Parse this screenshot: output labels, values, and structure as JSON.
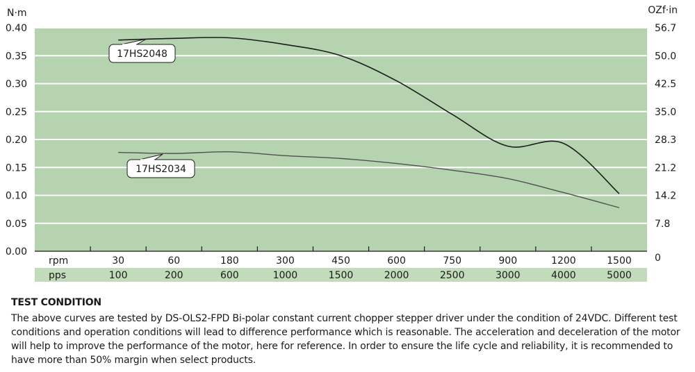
{
  "chart_data": {
    "type": "line",
    "ylabel_left": "N·m",
    "ylabel_right": "OZf·in",
    "ylim": [
      0,
      0.4
    ],
    "yticks_left": [
      "0.00",
      "0.05",
      "0.10",
      "0.15",
      "0.20",
      "0.25",
      "0.30",
      "0.35",
      "0.40"
    ],
    "yticks_right": [
      "0",
      "7.8",
      "14.2",
      "21.2",
      "28.3",
      "35.0",
      "42.5",
      "50.0",
      "56.7"
    ],
    "row_labels": {
      "rpm": "rpm",
      "pps": "pps"
    },
    "rpm": [
      "30",
      "60",
      "180",
      "300",
      "450",
      "600",
      "750",
      "900",
      "1200",
      "1500"
    ],
    "pps": [
      "100",
      "200",
      "600",
      "1000",
      "1500",
      "2000",
      "2500",
      "3000",
      "4000",
      "5000"
    ],
    "grid": true,
    "series": [
      {
        "name": "17HS2048",
        "x": [
          30,
          60,
          180,
          300,
          450,
          600,
          750,
          900,
          1200,
          1500
        ],
        "values": [
          0.378,
          0.381,
          0.382,
          0.37,
          0.35,
          0.305,
          0.245,
          0.188,
          0.193,
          0.103
        ]
      },
      {
        "name": "17HS2034",
        "x": [
          30,
          60,
          180,
          300,
          450,
          600,
          750,
          900,
          1200,
          1500
        ],
        "values": [
          0.177,
          0.175,
          0.178,
          0.171,
          0.166,
          0.157,
          0.145,
          0.13,
          0.105,
          0.078
        ]
      }
    ]
  },
  "test_condition": {
    "title": "TEST CONDITION",
    "body": "The above curves are tested by DS-OLS2-FPD Bi-polar constant current chopper stepper driver under the condition of 24VDC. Different test conditions and operation conditions will lead to difference performance which is reasonable. The acceleration and deceleration of the motor will help to improve the performance of the motor, here for reference. In order to ensure the life cycle and reliability, it is recommended to have more than 50% margin when select products."
  },
  "colors": {
    "plot_bg": "#b6d3b0",
    "row_bg": "#c1dbbb",
    "grid": "#ffffff",
    "curve_upper": "#1c1c1c",
    "curve_lower": "#505050"
  }
}
